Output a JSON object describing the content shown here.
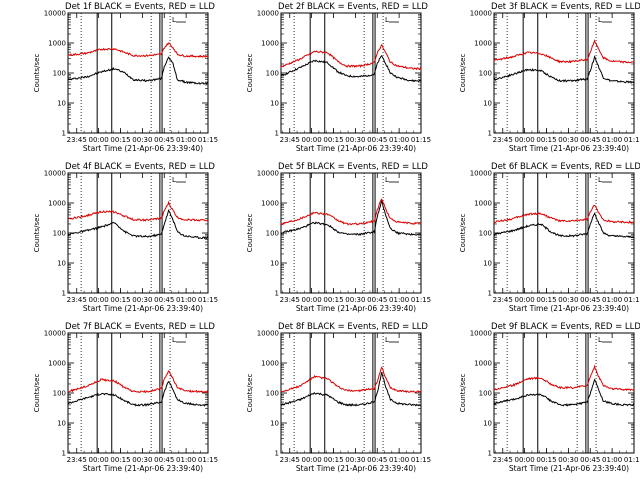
{
  "page": {
    "background": "#ffffff"
  },
  "chart_data": [
    {
      "type": "line",
      "title": "Det 1f BLACK = Events, RED = LLD",
      "xlabel": "Start Time (21-Apr-06 23:39:40)",
      "ylabel": "Counts/sec",
      "x_tick_labels": [
        "23:45",
        "00:00",
        "00:15",
        "00:30",
        "00:45",
        "01:00",
        "01:15"
      ],
      "y_tick_labels": [
        "1",
        "10",
        "100",
        "1000",
        "10000"
      ],
      "ylim": [
        1,
        10000
      ],
      "yscale": "log",
      "legend_marker": "L",
      "series": [
        {
          "name": "Events",
          "color": "#000000",
          "x": [
            0,
            13,
            23,
            32,
            39,
            45,
            54,
            64,
            66,
            69,
            72,
            75,
            80,
            90,
            96
          ],
          "values": [
            60,
            75,
            110,
            140,
            100,
            60,
            55,
            65,
            160,
            350,
            200,
            60,
            50,
            45,
            45
          ]
        },
        {
          "name": "LLD",
          "color": "#dd0000",
          "x": [
            0,
            13,
            23,
            32,
            39,
            45,
            54,
            64,
            66,
            69,
            72,
            75,
            80,
            90,
            96
          ],
          "values": [
            390,
            460,
            620,
            640,
            480,
            380,
            380,
            420,
            700,
            1000,
            700,
            420,
            370,
            360,
            360
          ]
        }
      ]
    },
    {
      "type": "line",
      "title": "Det 2f BLACK = Events, RED = LLD",
      "xlabel": "Start Time (21-Apr-06 23:39:40)",
      "ylabel": "Counts/sec",
      "x_tick_labels": [
        "23:45",
        "00:00",
        "00:15",
        "00:30",
        "00:45",
        "01:00",
        "01:15"
      ],
      "y_tick_labels": [
        "1",
        "10",
        "100",
        "1000",
        "10000"
      ],
      "ylim": [
        1,
        10000
      ],
      "yscale": "log",
      "legend_marker": "L",
      "series": [
        {
          "name": "Events",
          "color": "#000000",
          "x": [
            0,
            13,
            23,
            32,
            39,
            45,
            54,
            64,
            66,
            69,
            72,
            75,
            80,
            90,
            96
          ],
          "values": [
            80,
            150,
            260,
            220,
            110,
            80,
            75,
            90,
            200,
            380,
            200,
            100,
            70,
            55,
            55
          ]
        },
        {
          "name": "LLD",
          "color": "#dd0000",
          "x": [
            0,
            13,
            23,
            32,
            39,
            45,
            54,
            64,
            66,
            69,
            72,
            75,
            80,
            90,
            96
          ],
          "values": [
            160,
            290,
            520,
            480,
            240,
            170,
            170,
            220,
            480,
            850,
            450,
            230,
            170,
            140,
            140
          ]
        }
      ]
    },
    {
      "type": "line",
      "title": "Det 3f BLACK = Events, RED = LLD",
      "xlabel": "Start Time (21-Apr-06 23:39:40)",
      "ylabel": "Counts/sec",
      "x_tick_labels": [
        "23:45",
        "00:00",
        "00:15",
        "00:30",
        "00:45",
        "01:00",
        "01:15"
      ],
      "y_tick_labels": [
        "1",
        "10",
        "100",
        "1000",
        "10000"
      ],
      "ylim": [
        1,
        10000
      ],
      "yscale": "log",
      "legend_marker": "L",
      "series": [
        {
          "name": "Events",
          "color": "#000000",
          "x": [
            0,
            13,
            23,
            32,
            39,
            45,
            54,
            64,
            66,
            69,
            72,
            75,
            80,
            90,
            96
          ],
          "values": [
            60,
            90,
            130,
            120,
            75,
            55,
            55,
            65,
            120,
            350,
            150,
            70,
            55,
            50,
            50
          ]
        },
        {
          "name": "LLD",
          "color": "#dd0000",
          "x": [
            0,
            13,
            23,
            32,
            39,
            45,
            54,
            64,
            66,
            69,
            72,
            75,
            80,
            90,
            96
          ],
          "values": [
            260,
            350,
            480,
            450,
            320,
            240,
            240,
            280,
            500,
            1150,
            600,
            320,
            250,
            230,
            230
          ]
        }
      ]
    },
    {
      "type": "line",
      "title": "Det 4f BLACK = Events, RED = LLD",
      "xlabel": "Start Time (21-Apr-06 23:39:40)",
      "ylabel": "Counts/sec",
      "x_tick_labels": [
        "23:45",
        "00:00",
        "00:15",
        "00:30",
        "00:45",
        "01:00",
        "01:15"
      ],
      "y_tick_labels": [
        "1",
        "10",
        "100",
        "1000",
        "10000"
      ],
      "ylim": [
        1,
        10000
      ],
      "yscale": "log",
      "legend_marker": "L",
      "series": [
        {
          "name": "Events",
          "color": "#000000",
          "x": [
            0,
            13,
            23,
            32,
            39,
            45,
            54,
            64,
            66,
            69,
            72,
            75,
            80,
            90,
            96
          ],
          "values": [
            90,
            120,
            160,
            220,
            110,
            80,
            75,
            90,
            200,
            550,
            280,
            110,
            80,
            70,
            70
          ]
        },
        {
          "name": "LLD",
          "color": "#dd0000",
          "x": [
            0,
            13,
            23,
            32,
            39,
            45,
            54,
            64,
            66,
            69,
            72,
            75,
            80,
            90,
            96
          ],
          "values": [
            290,
            380,
            520,
            500,
            360,
            280,
            270,
            310,
            550,
            1000,
            560,
            330,
            280,
            270,
            270
          ]
        }
      ]
    },
    {
      "type": "line",
      "title": "Det 5f BLACK = Events, RED = LLD",
      "xlabel": "Start Time (21-Apr-06 23:39:40)",
      "ylabel": "Counts/sec",
      "x_tick_labels": [
        "23:45",
        "00:00",
        "00:15",
        "00:30",
        "00:45",
        "01:00",
        "01:15"
      ],
      "y_tick_labels": [
        "1",
        "10",
        "100",
        "1000",
        "10000"
      ],
      "ylim": [
        1,
        10000
      ],
      "yscale": "log",
      "legend_marker": "L",
      "series": [
        {
          "name": "Events",
          "color": "#000000",
          "x": [
            0,
            13,
            23,
            32,
            39,
            45,
            54,
            64,
            66,
            69,
            72,
            75,
            80,
            90,
            96
          ],
          "values": [
            100,
            140,
            220,
            190,
            110,
            90,
            90,
            110,
            350,
            1100,
            380,
            140,
            100,
            90,
            90
          ]
        },
        {
          "name": "LLD",
          "color": "#dd0000",
          "x": [
            0,
            13,
            23,
            32,
            39,
            45,
            54,
            64,
            66,
            69,
            72,
            75,
            80,
            90,
            96
          ],
          "values": [
            200,
            300,
            480,
            420,
            260,
            200,
            200,
            250,
            600,
            1400,
            600,
            300,
            230,
            210,
            210
          ]
        }
      ]
    },
    {
      "type": "line",
      "title": "Det 6f BLACK = Events, RED = LLD",
      "xlabel": "Start Time (21-Apr-06 23:39:40)",
      "ylabel": "Counts/sec",
      "x_tick_labels": [
        "23:45",
        "00:00",
        "00:15",
        "00:30",
        "00:45",
        "01:00",
        "01:15"
      ],
      "y_tick_labels": [
        "1",
        "10",
        "100",
        "1000",
        "10000"
      ],
      "ylim": [
        1,
        10000
      ],
      "yscale": "log",
      "legend_marker": "L",
      "series": [
        {
          "name": "Events",
          "color": "#000000",
          "x": [
            0,
            13,
            23,
            32,
            39,
            45,
            54,
            64,
            66,
            69,
            72,
            75,
            80,
            90,
            96
          ],
          "values": [
            90,
            120,
            170,
            200,
            110,
            80,
            80,
            95,
            200,
            480,
            200,
            100,
            80,
            75,
            75
          ]
        },
        {
          "name": "LLD",
          "color": "#dd0000",
          "x": [
            0,
            13,
            23,
            32,
            39,
            45,
            54,
            64,
            66,
            69,
            72,
            75,
            80,
            90,
            96
          ],
          "values": [
            230,
            300,
            420,
            450,
            320,
            250,
            250,
            290,
            500,
            850,
            450,
            280,
            240,
            230,
            230
          ]
        }
      ]
    },
    {
      "type": "line",
      "title": "Det 7f BLACK = Events, RED = LLD",
      "xlabel": "Start Time (21-Apr-06 23:39:40)",
      "ylabel": "Counts/sec",
      "x_tick_labels": [
        "23:45",
        "00:00",
        "00:15",
        "00:30",
        "00:45",
        "01:00",
        "01:15"
      ],
      "y_tick_labels": [
        "1",
        "10",
        "100",
        "1000",
        "10000"
      ],
      "ylim": [
        1,
        10000
      ],
      "yscale": "log",
      "legend_marker": "L",
      "series": [
        {
          "name": "Events",
          "color": "#000000",
          "x": [
            0,
            13,
            23,
            32,
            39,
            45,
            54,
            64,
            66,
            69,
            72,
            75,
            80,
            90,
            96
          ],
          "values": [
            45,
            70,
            95,
            85,
            55,
            40,
            40,
            50,
            110,
            250,
            130,
            60,
            45,
            40,
            40
          ]
        },
        {
          "name": "LLD",
          "color": "#dd0000",
          "x": [
            0,
            13,
            23,
            32,
            39,
            45,
            54,
            64,
            66,
            69,
            72,
            75,
            80,
            90,
            96
          ],
          "values": [
            110,
            170,
            280,
            250,
            150,
            110,
            110,
            140,
            280,
            550,
            300,
            150,
            120,
            110,
            110
          ]
        }
      ]
    },
    {
      "type": "line",
      "title": "Det 8f BLACK = Events, RED = LLD",
      "xlabel": "Start Time (21-Apr-06 23:39:40)",
      "ylabel": "Counts/sec",
      "x_tick_labels": [
        "23:45",
        "00:00",
        "00:15",
        "00:30",
        "00:45",
        "01:00",
        "01:15"
      ],
      "y_tick_labels": [
        "1",
        "10",
        "100",
        "1000",
        "10000"
      ],
      "ylim": [
        1,
        10000
      ],
      "yscale": "log",
      "legend_marker": "L",
      "series": [
        {
          "name": "Events",
          "color": "#000000",
          "x": [
            0,
            13,
            23,
            32,
            39,
            45,
            54,
            64,
            66,
            69,
            72,
            75,
            80,
            90,
            96
          ],
          "values": [
            40,
            60,
            100,
            85,
            50,
            40,
            40,
            50,
            100,
            500,
            150,
            60,
            45,
            40,
            40
          ]
        },
        {
          "name": "LLD",
          "color": "#dd0000",
          "x": [
            0,
            13,
            23,
            32,
            39,
            45,
            54,
            64,
            66,
            69,
            72,
            75,
            80,
            90,
            96
          ],
          "values": [
            110,
            170,
            350,
            300,
            160,
            120,
            120,
            140,
            250,
            700,
            300,
            150,
            120,
            110,
            110
          ]
        }
      ]
    },
    {
      "type": "line",
      "title": "Det 9f BLACK = Events, RED = LLD",
      "xlabel": "Start Time (21-Apr-06 23:39:40)",
      "ylabel": "Counts/sec",
      "x_tick_labels": [
        "23:45",
        "00:00",
        "00:15",
        "00:30",
        "00:45",
        "01:00",
        "01:15"
      ],
      "y_tick_labels": [
        "1",
        "10",
        "100",
        "1000",
        "10000"
      ],
      "ylim": [
        1,
        10000
      ],
      "yscale": "log",
      "legend_marker": "L",
      "series": [
        {
          "name": "Events",
          "color": "#000000",
          "x": [
            0,
            13,
            23,
            32,
            39,
            45,
            54,
            64,
            66,
            69,
            72,
            75,
            80,
            90,
            96
          ],
          "values": [
            45,
            60,
            85,
            90,
            55,
            40,
            40,
            50,
            100,
            280,
            120,
            55,
            45,
            40,
            40
          ]
        },
        {
          "name": "LLD",
          "color": "#dd0000",
          "x": [
            0,
            13,
            23,
            32,
            39,
            45,
            54,
            64,
            66,
            69,
            72,
            75,
            80,
            90,
            96
          ],
          "values": [
            130,
            180,
            300,
            320,
            200,
            150,
            150,
            180,
            350,
            750,
            330,
            180,
            140,
            130,
            130
          ]
        }
      ]
    }
  ]
}
